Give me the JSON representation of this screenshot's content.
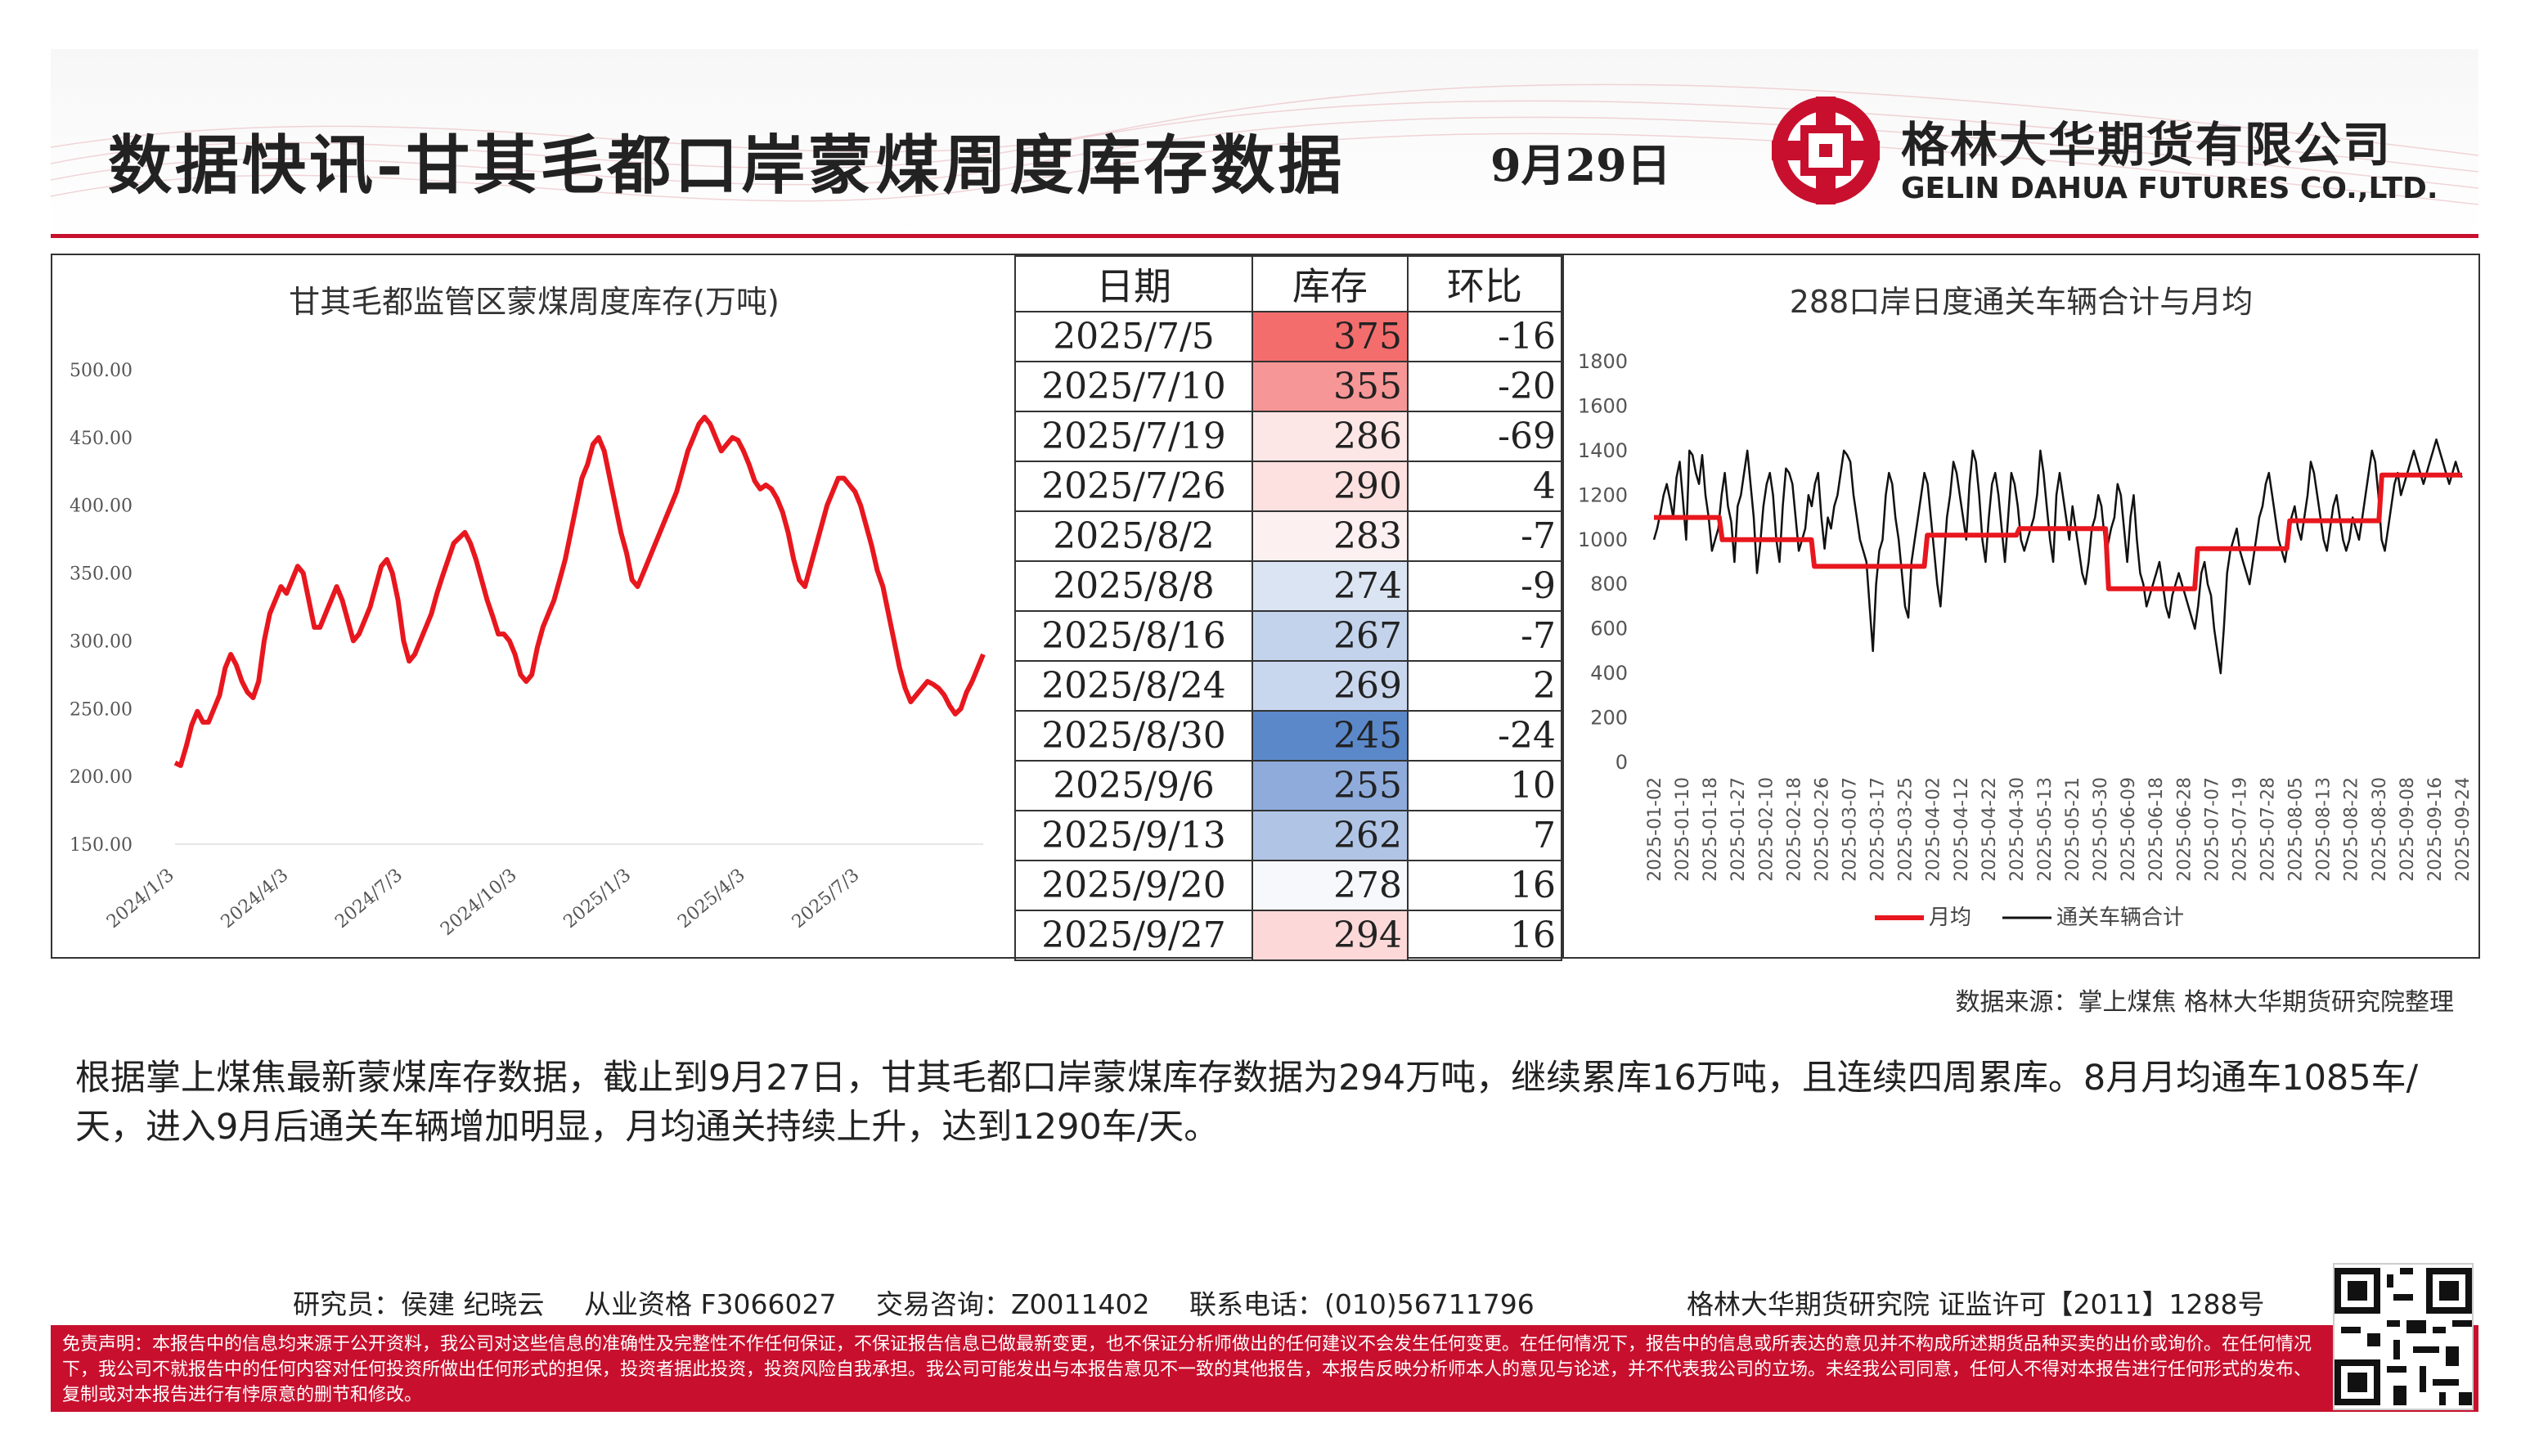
{
  "header": {
    "title": "数据快讯-甘其毛都口岸蒙煤周度库存数据",
    "date": "9月29日",
    "company_cn": "格林大华期货有限公司",
    "company_en": "GELIN DAHUA FUTURES CO.,LTD.",
    "accent_color": "#c8102e"
  },
  "table": {
    "headers": [
      "日期",
      "库存",
      "环比"
    ],
    "rows": [
      {
        "date": "2025/7/5",
        "value": "375",
        "change": "-16",
        "bg": "#f46d6d"
      },
      {
        "date": "2025/7/10",
        "value": "355",
        "change": "-20",
        "bg": "#f79696"
      },
      {
        "date": "2025/7/19",
        "value": "286",
        "change": "-69",
        "bg": "#fde6e6"
      },
      {
        "date": "2025/7/26",
        "value": "290",
        "change": "4",
        "bg": "#fde0e0"
      },
      {
        "date": "2025/8/2",
        "value": "283",
        "change": "-7",
        "bg": "#fdf0f0"
      },
      {
        "date": "2025/8/8",
        "value": "274",
        "change": "-9",
        "bg": "#dbe4f2"
      },
      {
        "date": "2025/8/16",
        "value": "267",
        "change": "-7",
        "bg": "#c3d3ec"
      },
      {
        "date": "2025/8/24",
        "value": "269",
        "change": "2",
        "bg": "#c9d7ee"
      },
      {
        "date": "2025/8/30",
        "value": "245",
        "change": "-24",
        "bg": "#5b88c9"
      },
      {
        "date": "2025/9/6",
        "value": "255",
        "change": "10",
        "bg": "#8eabdb"
      },
      {
        "date": "2025/9/13",
        "value": "262",
        "change": "7",
        "bg": "#b0c5e6"
      },
      {
        "date": "2025/9/20",
        "value": "278",
        "change": "16",
        "bg": "#f7f8fc"
      },
      {
        "date": "2025/9/27",
        "value": "294",
        "change": "16",
        "bg": "#fcd8d8"
      }
    ]
  },
  "chart_data": [
    {
      "type": "line",
      "title": "甘其毛都监管区蒙煤周度库存(万吨)",
      "y_ticks": [
        "500.00",
        "450.00",
        "400.00",
        "350.00",
        "300.00",
        "250.00",
        "200.00",
        "150.00"
      ],
      "ylim": [
        150,
        500
      ],
      "x_ticks": [
        "2024/1/3",
        "2024/4/3",
        "2024/7/3",
        "2024/10/3",
        "2025/1/3",
        "2025/4/3",
        "2025/7/3"
      ],
      "x_tick_weeks": [
        0,
        13,
        26,
        39,
        52,
        65,
        78
      ],
      "x_range_weeks": [
        0,
        92
      ],
      "grid": false,
      "line_color": "#e8171e",
      "series": [
        {
          "values": [
            210,
            208,
            222,
            238,
            248,
            240,
            240,
            250,
            260,
            280,
            290,
            282,
            270,
            262,
            258,
            270,
            300,
            320,
            330,
            340,
            335,
            345,
            355,
            350,
            330,
            310,
            310,
            320,
            330,
            340,
            330,
            315,
            300,
            305,
            315,
            325,
            340,
            355,
            360,
            350,
            330,
            300,
            285,
            290,
            300,
            310,
            320,
            335,
            348,
            360,
            372,
            376,
            380,
            372,
            360,
            345,
            330,
            318,
            305,
            305,
            300,
            290,
            275,
            270,
            275,
            295,
            310,
            320,
            330,
            345,
            360,
            380,
            400,
            420,
            430,
            445,
            450,
            440,
            420,
            400,
            380,
            365,
            345,
            340,
            350,
            360,
            370,
            380,
            390,
            400,
            410,
            425,
            440,
            450,
            460,
            465,
            460,
            450,
            440,
            445,
            450,
            448,
            440,
            430,
            418,
            412,
            415,
            412,
            405,
            395,
            380,
            360,
            345,
            340,
            355,
            370,
            385,
            400,
            410,
            420,
            420,
            415,
            410,
            400,
            385,
            370,
            352,
            340,
            320,
            300,
            280,
            265,
            255,
            260,
            265,
            270,
            268,
            265,
            260,
            252,
            246,
            250,
            262,
            270,
            280,
            290
          ]
        }
      ]
    },
    {
      "type": "line",
      "title": "288口岸日度通关车辆合计与月均",
      "y_ticks": [
        "1800",
        "1600",
        "1400",
        "1200",
        "1000",
        "800",
        "600",
        "400",
        "200",
        "0"
      ],
      "ylim": [
        0,
        1800
      ],
      "x_ticks": [
        "2025-01-02",
        "2025-01-10",
        "2025-01-18",
        "2025-01-27",
        "2025-02-10",
        "2025-02-18",
        "2025-02-26",
        "2025-03-07",
        "2025-03-17",
        "2025-03-25",
        "2025-04-02",
        "2025-04-12",
        "2025-04-22",
        "2025-04-30",
        "2025-05-13",
        "2025-05-21",
        "2025-05-30",
        "2025-06-09",
        "2025-06-18",
        "2025-06-28",
        "2025-07-07",
        "2025-07-19",
        "2025-07-28",
        "2025-08-05",
        "2025-08-13",
        "2025-08-22",
        "2025-08-30",
        "2025-09-08",
        "2025-09-16",
        "2025-09-24"
      ],
      "legend": [
        "月均",
        "通关车辆合计"
      ],
      "legend_position": "bottom",
      "series": [
        {
          "name": "月均",
          "color": "#e8171e",
          "values": [
            1100,
            1100,
            1100,
            1100,
            1100,
            1100,
            1100,
            1100,
            1100,
            1100,
            1100,
            1100,
            1100,
            1100,
            1100,
            1100,
            1100,
            1100,
            1100,
            1100,
            1100,
            1100,
            1100,
            1000,
            1000,
            1000,
            1000,
            1000,
            1000,
            1000,
            1000,
            1000,
            1000,
            1000,
            1000,
            1000,
            1000,
            1000,
            1000,
            1000,
            1000,
            1000,
            1000,
            1000,
            1000,
            1000,
            1000,
            1000,
            1000,
            1000,
            1000,
            1000,
            1000,
            1000,
            880,
            880,
            880,
            880,
            880,
            880,
            880,
            880,
            880,
            880,
            880,
            880,
            880,
            880,
            880,
            880,
            880,
            880,
            880,
            880,
            880,
            880,
            880,
            880,
            880,
            880,
            880,
            880,
            880,
            880,
            880,
            880,
            880,
            880,
            880,
            880,
            880,
            880,
            1020,
            1020,
            1020,
            1020,
            1020,
            1020,
            1020,
            1020,
            1020,
            1020,
            1020,
            1020,
            1020,
            1020,
            1020,
            1020,
            1020,
            1020,
            1020,
            1020,
            1020,
            1020,
            1020,
            1020,
            1020,
            1020,
            1020,
            1020,
            1020,
            1020,
            1020,
            1050,
            1050,
            1050,
            1050,
            1050,
            1050,
            1050,
            1050,
            1050,
            1050,
            1050,
            1050,
            1050,
            1050,
            1050,
            1050,
            1050,
            1050,
            1050,
            1050,
            1050,
            1050,
            1050,
            1050,
            1050,
            1050,
            1050,
            1050,
            1050,
            1050,
            780,
            780,
            780,
            780,
            780,
            780,
            780,
            780,
            780,
            780,
            780,
            780,
            780,
            780,
            780,
            780,
            780,
            780,
            780,
            780,
            780,
            780,
            780,
            780,
            780,
            780,
            780,
            780,
            780,
            780,
            960,
            960,
            960,
            960,
            960,
            960,
            960,
            960,
            960,
            960,
            960,
            960,
            960,
            960,
            960,
            960,
            960,
            960,
            960,
            960,
            960,
            960,
            960,
            960,
            960,
            960,
            960,
            960,
            960,
            960,
            960,
            1085,
            1085,
            1085,
            1085,
            1085,
            1085,
            1085,
            1085,
            1085,
            1085,
            1085,
            1085,
            1085,
            1085,
            1085,
            1085,
            1085,
            1085,
            1085,
            1085,
            1085,
            1085,
            1085,
            1085,
            1085,
            1085,
            1085,
            1085,
            1085,
            1085,
            1085,
            1290,
            1290,
            1290,
            1290,
            1290,
            1290,
            1290,
            1290,
            1290,
            1290,
            1290,
            1290,
            1290,
            1290,
            1290,
            1290,
            1290,
            1290,
            1290,
            1290,
            1290,
            1290,
            1290,
            1290,
            1290,
            1290,
            1290,
            1290
          ]
        },
        {
          "name": "通关车辆合计",
          "color": "#111111",
          "values": [
            1000,
            1050,
            1120,
            1200,
            1250,
            1180,
            1100,
            1280,
            1350,
            1180,
            1000,
            1400,
            1380,
            1300,
            1250,
            1380,
            1200,
            1100,
            950,
            1000,
            1050,
            1200,
            1300,
            1150,
            1080,
            900,
            1150,
            1200,
            1300,
            1400,
            1250,
            1100,
            850,
            980,
            1150,
            1250,
            1300,
            1200,
            1000,
            900,
            1150,
            1320,
            1300,
            1250,
            1100,
            950,
            1000,
            1050,
            1200,
            1150,
            1250,
            1300,
            1100,
            960,
            1100,
            1050,
            1150,
            1200,
            1300,
            1400,
            1380,
            1350,
            1200,
            1100,
            1000,
            950,
            900,
            700,
            500,
            800,
            950,
            1000,
            1200,
            1300,
            1250,
            1100,
            1000,
            850,
            700,
            650,
            900,
            1000,
            1100,
            1200,
            1300,
            1250,
            1100,
            950,
            800,
            700,
            900,
            1100,
            1200,
            1350,
            1300,
            1200,
            1100,
            1000,
            1250,
            1400,
            1350,
            1200,
            1000,
            900,
            1100,
            1250,
            1300,
            1200,
            1050,
            900,
            1100,
            1300,
            1250,
            1150,
            1000,
            950,
            1000,
            1050,
            1100,
            1200,
            1400,
            1300,
            1150,
            1000,
            900,
            1200,
            1300,
            1200,
            1100,
            1000,
            1150,
            1050,
            950,
            850,
            800,
            900,
            1050,
            1100,
            1200,
            1150,
            1000,
            980,
            1050,
            1100,
            1250,
            1200,
            1050,
            900,
            1100,
            1200,
            1000,
            850,
            800,
            700,
            750,
            800,
            850,
            900,
            800,
            700,
            650,
            750,
            800,
            850,
            800,
            750,
            700,
            650,
            600,
            700,
            850,
            900,
            800,
            750,
            600,
            500,
            400,
            600,
            850,
            950,
            1000,
            1050,
            950,
            900,
            850,
            800,
            900,
            1000,
            1100,
            1150,
            1250,
            1300,
            1200,
            1100,
            1000,
            950,
            900,
            1000,
            1100,
            1150,
            1050,
            1000,
            1100,
            1200,
            1350,
            1300,
            1200,
            1100,
            1000,
            950,
            1050,
            1150,
            1200,
            1100,
            1000,
            950,
            1000,
            1100,
            1050,
            1000,
            1100,
            1200,
            1300,
            1400,
            1350,
            1200,
            1000,
            950,
            1050,
            1150,
            1250,
            1300,
            1200,
            1250,
            1300,
            1350,
            1400,
            1350,
            1300,
            1250,
            1300,
            1350,
            1400,
            1450,
            1400,
            1350,
            1300,
            1250,
            1300,
            1350,
            1300,
            1280
          ]
        }
      ]
    }
  ],
  "source": "数据来源：掌上煤焦 格林大华期货研究院整理",
  "description": "根据掌上煤焦最新蒙煤库存数据，截止到9月27日，甘其毛都口岸蒙煤库存数据为294万吨，继续累库16万吨，且连续四周累库。8月月均通车1085车/天，进入9月后通关车辆增加明显，月均通关持续上升，达到1290车/天。",
  "footer": {
    "researcher": "研究员：侯建 纪晓云",
    "qualification": "从业资格 F3066027",
    "consult": "交易咨询：Z0011402",
    "phone": "联系电话：(010)56711796",
    "license": "格林大华期货研究院 证监许可【2011】1288号"
  },
  "disclaimer": "免责声明：本报告中的信息均来源于公开资料，我公司对这些信息的准确性及完整性不作任何保证，不保证报告信息已做最新变更，也不保证分析师做出的任何建议不会发生任何变更。在任何情况下，报告中的信息或所表达的意见并不构成所述期货品种买卖的出价或询价。在任何情况下，我公司不就报告中的任何内容对任何投资所做出任何形式的担保，投资者据此投资，投资风险自我承担。我公司可能发出与本报告意见不一致的其他报告，本报告反映分析师本人的意见与论述，并不代表我公司的立场。未经我公司同意，任何人不得对本报告进行任何形式的发布、复制或对本报告进行有悖原意的删节和修改。"
}
